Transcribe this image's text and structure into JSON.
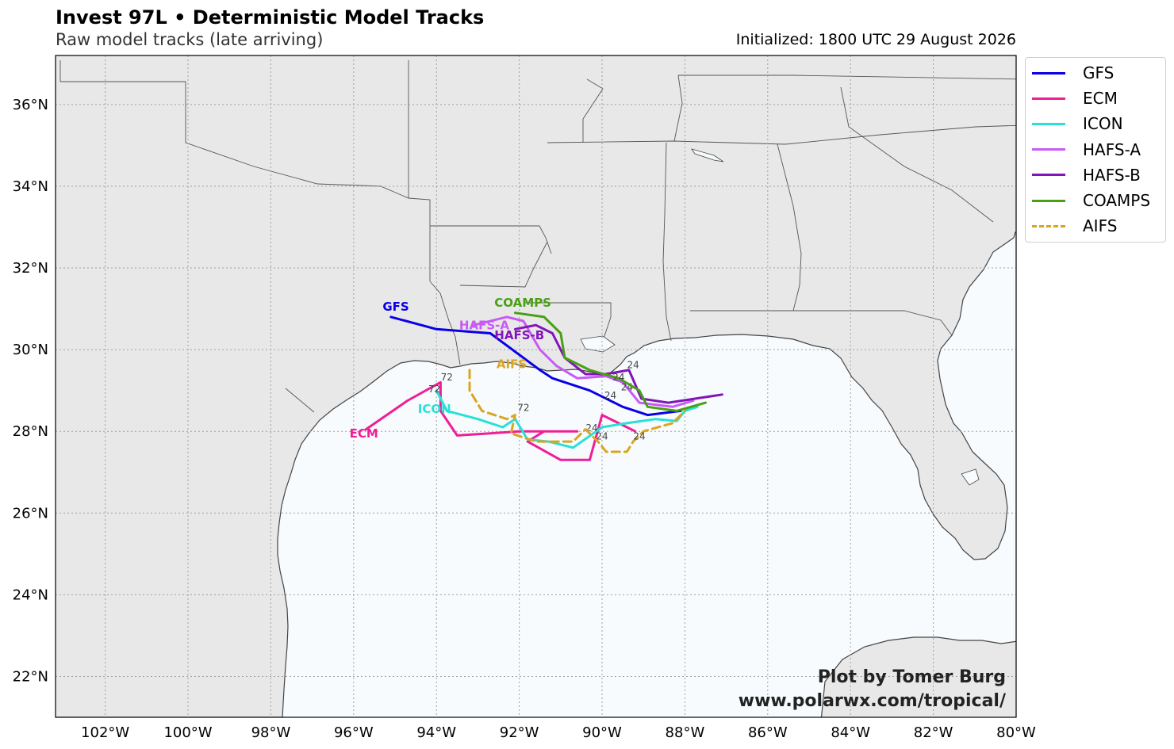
{
  "header": {
    "title": "Invest 97L • Deterministic Model Tracks",
    "subtitle": "Raw model tracks (late arriving)",
    "initialized": "Initialized: 1800 UTC 29 August 2026"
  },
  "credits": {
    "line1": "Plot by Tomer Burg",
    "line2": "www.polarwx.com/tropical/"
  },
  "map": {
    "lon_range": [
      -103.2,
      -80.0
    ],
    "lat_range": [
      21.0,
      37.2
    ],
    "lat_ticks": [
      {
        "v": 22,
        "label": "22°N"
      },
      {
        "v": 24,
        "label": "24°N"
      },
      {
        "v": 26,
        "label": "26°N"
      },
      {
        "v": 28,
        "label": "28°N"
      },
      {
        "v": 30,
        "label": "30°N"
      },
      {
        "v": 32,
        "label": "32°N"
      },
      {
        "v": 34,
        "label": "34°N"
      },
      {
        "v": 36,
        "label": "36°N"
      }
    ],
    "lon_ticks": [
      {
        "v": -102,
        "label": "102°W"
      },
      {
        "v": -100,
        "label": "100°W"
      },
      {
        "v": -98,
        "label": "98°W"
      },
      {
        "v": -96,
        "label": "96°W"
      },
      {
        "v": -94,
        "label": "94°W"
      },
      {
        "v": -92,
        "label": "92°W"
      },
      {
        "v": -90,
        "label": "90°W"
      },
      {
        "v": -88,
        "label": "88°W"
      },
      {
        "v": -86,
        "label": "86°W"
      },
      {
        "v": -84,
        "label": "84°W"
      },
      {
        "v": -82,
        "label": "82°W"
      },
      {
        "v": -80,
        "label": "80°W"
      }
    ],
    "colors": {
      "land": "#e8e8e8",
      "water": "#f7fbfd",
      "coast": "#444444",
      "border": "#555555",
      "grid": "#a0a0a0"
    }
  },
  "legend": [
    {
      "name": "GFS",
      "color": "#0a00e6",
      "dashed": false
    },
    {
      "name": "ECM",
      "color": "#f01e96",
      "dashed": false
    },
    {
      "name": "ICON",
      "color": "#28e0d8",
      "dashed": false
    },
    {
      "name": "HAFS-A",
      "color": "#c85af5",
      "dashed": false
    },
    {
      "name": "HAFS-B",
      "color": "#8214b9",
      "dashed": false
    },
    {
      "name": "COAMPS",
      "color": "#48a014",
      "dashed": false
    },
    {
      "name": "AIFS",
      "color": "#daa520",
      "dashed": true
    }
  ],
  "tracks": [
    {
      "name": "GFS",
      "color": "#0a00e6",
      "dashed": false,
      "points": [
        [
          -95.1,
          30.8
        ],
        [
          -94.0,
          30.5
        ],
        [
          -92.7,
          30.4
        ],
        [
          -91.5,
          29.5
        ],
        [
          -91.2,
          29.3
        ],
        [
          -90.3,
          29.0
        ],
        [
          -89.5,
          28.6
        ],
        [
          -88.9,
          28.4
        ],
        [
          -88.1,
          28.5
        ]
      ],
      "label": "GFS",
      "label_at": [
        -95.3,
        30.95
      ],
      "hour_marks": [
        {
          "text": "24",
          "at": [
            -89.8,
            28.8
          ]
        }
      ]
    },
    {
      "name": "ECM",
      "color": "#f01e96",
      "dashed": false,
      "points": [
        [
          -95.7,
          28.05
        ],
        [
          -94.7,
          28.75
        ],
        [
          -93.9,
          29.2
        ],
        [
          -93.9,
          28.5
        ],
        [
          -93.5,
          27.9
        ],
        [
          -92.7,
          27.95
        ],
        [
          -92.0,
          28.0
        ],
        [
          -91.2,
          28.0
        ],
        [
          -90.6,
          28.0
        ],
        [
          -91.4,
          28.0
        ],
        [
          -91.8,
          27.75
        ],
        [
          -91.0,
          27.3
        ],
        [
          -90.3,
          27.3
        ],
        [
          -90.0,
          28.4
        ],
        [
          -89.6,
          28.2
        ],
        [
          -89.2,
          28.0
        ]
      ],
      "label": "ECM",
      "label_at": [
        -96.1,
        27.85
      ],
      "hour_marks": [
        {
          "text": "72",
          "at": [
            -93.75,
            29.25
          ]
        },
        {
          "text": "24",
          "at": [
            -90.0,
            27.8
          ]
        }
      ]
    },
    {
      "name": "ICON",
      "color": "#28e0d8",
      "dashed": false,
      "points": [
        [
          -94.0,
          29.0
        ],
        [
          -93.75,
          28.5
        ],
        [
          -93.0,
          28.3
        ],
        [
          -92.4,
          28.1
        ],
        [
          -92.1,
          28.3
        ],
        [
          -91.8,
          27.8
        ],
        [
          -91.3,
          27.75
        ],
        [
          -90.7,
          27.6
        ],
        [
          -90.0,
          28.1
        ],
        [
          -89.4,
          28.2
        ],
        [
          -88.7,
          28.3
        ],
        [
          -88.2,
          28.25
        ],
        [
          -88.0,
          28.5
        ],
        [
          -87.7,
          28.6
        ]
      ],
      "label": "ICON",
      "label_at": [
        -94.45,
        28.45
      ],
      "hour_marks": [
        {
          "text": "72",
          "at": [
            -94.05,
            28.95
          ]
        },
        {
          "text": "24",
          "at": [
            -90.25,
            28.0
          ]
        }
      ]
    },
    {
      "name": "HAFS-A",
      "color": "#c85af5",
      "dashed": false,
      "points": [
        [
          -93.1,
          30.6
        ],
        [
          -92.3,
          30.8
        ],
        [
          -91.9,
          30.7
        ],
        [
          -91.5,
          30.0
        ],
        [
          -91.1,
          29.6
        ],
        [
          -90.6,
          29.3
        ],
        [
          -89.9,
          29.35
        ],
        [
          -89.5,
          29.2
        ],
        [
          -89.1,
          28.7
        ],
        [
          -88.3,
          28.6
        ],
        [
          -87.8,
          28.75
        ]
      ],
      "label": "HAFS-A",
      "label_at": [
        -93.45,
        30.5
      ],
      "hour_marks": [
        {
          "text": "24",
          "at": [
            -89.4,
            29.0
          ]
        }
      ]
    },
    {
      "name": "HAFS-B",
      "color": "#8214b9",
      "dashed": false,
      "points": [
        [
          -92.1,
          30.5
        ],
        [
          -91.6,
          30.6
        ],
        [
          -91.2,
          30.4
        ],
        [
          -90.9,
          29.8
        ],
        [
          -90.4,
          29.4
        ],
        [
          -89.9,
          29.4
        ],
        [
          -89.35,
          29.5
        ],
        [
          -89.05,
          28.8
        ],
        [
          -88.4,
          28.7
        ],
        [
          -87.1,
          28.9
        ]
      ],
      "label": "HAFS-B",
      "label_at": [
        -92.6,
        30.25
      ],
      "hour_marks": [
        {
          "text": "24",
          "at": [
            -89.25,
            29.55
          ]
        }
      ]
    },
    {
      "name": "COAMPS",
      "color": "#48a014",
      "dashed": false,
      "points": [
        [
          -92.1,
          30.9
        ],
        [
          -91.4,
          30.8
        ],
        [
          -91.0,
          30.4
        ],
        [
          -90.9,
          29.8
        ],
        [
          -90.3,
          29.5
        ],
        [
          -89.6,
          29.3
        ],
        [
          -89.1,
          29.0
        ],
        [
          -88.9,
          28.6
        ],
        [
          -88.2,
          28.5
        ],
        [
          -87.5,
          28.7
        ]
      ],
      "label": "COAMPS",
      "label_at": [
        -92.6,
        31.05
      ],
      "hour_marks": [
        {
          "text": "24",
          "at": [
            -89.6,
            29.25
          ]
        }
      ]
    },
    {
      "name": "AIFS",
      "color": "#daa520",
      "dashed": true,
      "points": [
        [
          -93.2,
          29.5
        ],
        [
          -93.2,
          29.0
        ],
        [
          -92.9,
          28.5
        ],
        [
          -92.3,
          28.3
        ],
        [
          -92.1,
          28.4
        ],
        [
          -92.2,
          27.95
        ],
        [
          -91.6,
          27.75
        ],
        [
          -90.7,
          27.75
        ],
        [
          -90.4,
          28.05
        ],
        [
          -90.1,
          27.75
        ],
        [
          -89.9,
          27.5
        ],
        [
          -89.4,
          27.5
        ],
        [
          -89.25,
          27.75
        ],
        [
          -89.0,
          28.0
        ],
        [
          -88.3,
          28.2
        ],
        [
          -88.0,
          28.5
        ]
      ],
      "label": "AIFS",
      "label_at": [
        -92.55,
        29.55
      ],
      "hour_marks": [
        {
          "text": "72",
          "at": [
            -91.9,
            28.5
          ]
        },
        {
          "text": "24",
          "at": [
            -89.1,
            27.8
          ]
        }
      ]
    }
  ]
}
